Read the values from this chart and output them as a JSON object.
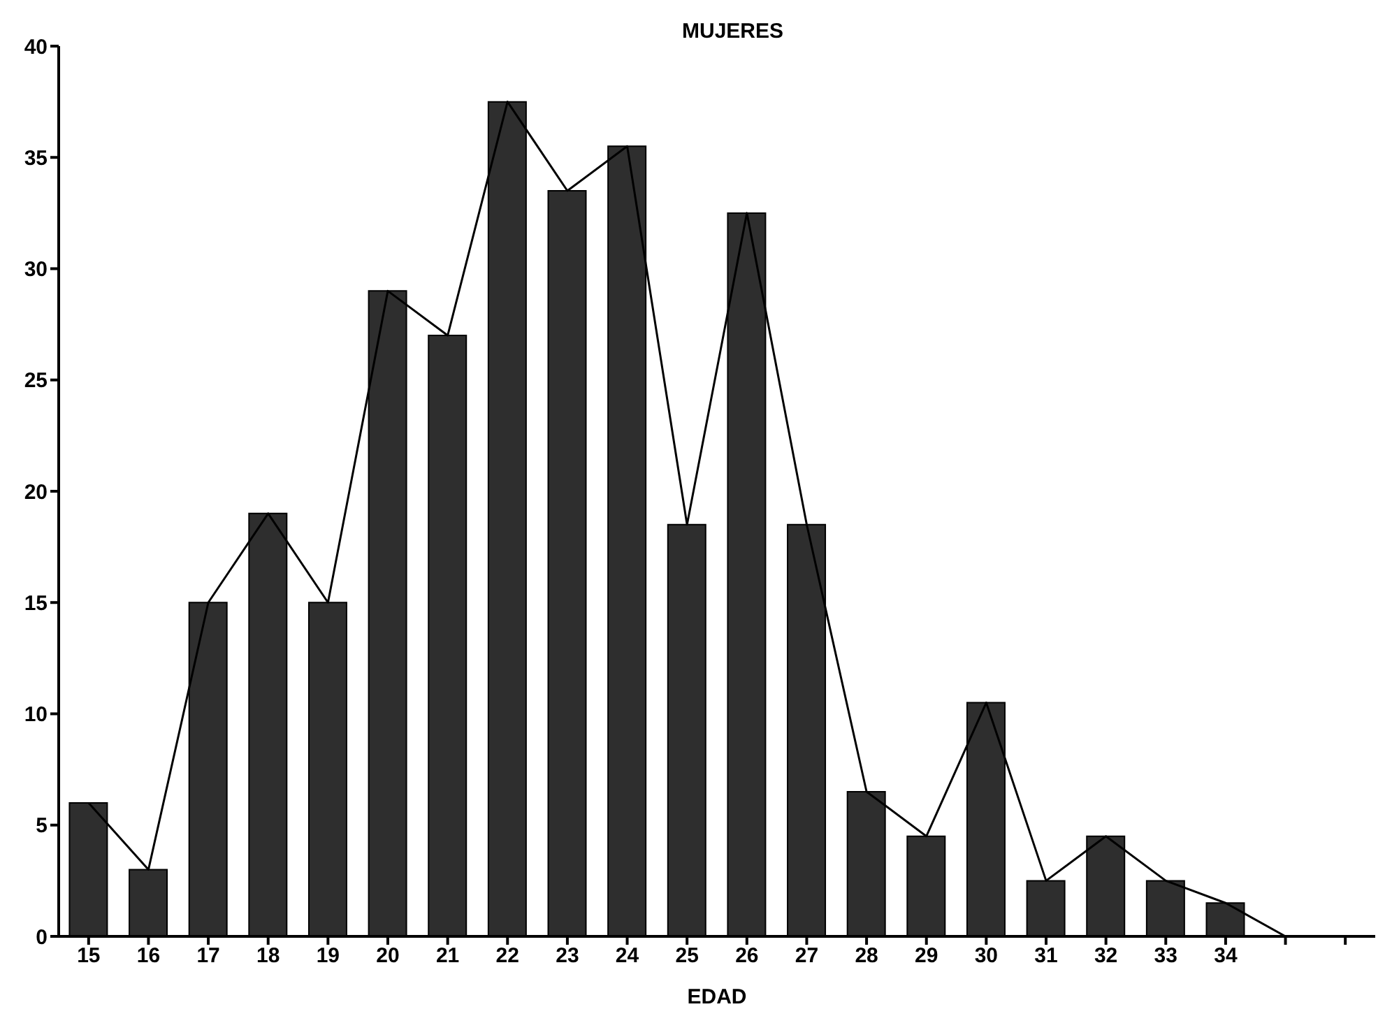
{
  "chart_data": {
    "type": "bar",
    "title": "MUJERES",
    "xlabel": "EDAD",
    "categories": [
      "15",
      "16",
      "17",
      "18",
      "19",
      "20",
      "21",
      "22",
      "23",
      "24",
      "25",
      "26",
      "27",
      "28",
      "29",
      "30",
      "31",
      "32",
      "33",
      "34",
      null,
      null
    ],
    "series": [
      {
        "color": "#2e2e2e",
        "values": [
          6,
          3,
          15,
          19,
          15,
          29,
          27,
          37.5,
          33.5,
          35.5,
          18.5,
          32.5,
          18.5,
          6.5,
          4.5,
          10.5,
          2.5,
          4.5,
          2.5,
          1.5,
          null,
          null
        ]
      },
      {
        "type": "line",
        "color": "#000000",
        "marker": "none",
        "values": [
          6,
          3,
          15,
          19,
          15,
          29,
          27,
          37.5,
          33.5,
          35.5,
          18.5,
          32.5,
          18.5,
          6.5,
          4.5,
          10.5,
          2.5,
          4.5,
          2.5,
          1.5,
          0,
          null
        ]
      }
    ],
    "ylim": [
      0,
      40
    ],
    "yticks": [
      0,
      5,
      10,
      15,
      20,
      25,
      30,
      35,
      40
    ],
    "grid": false,
    "legend": false
  }
}
